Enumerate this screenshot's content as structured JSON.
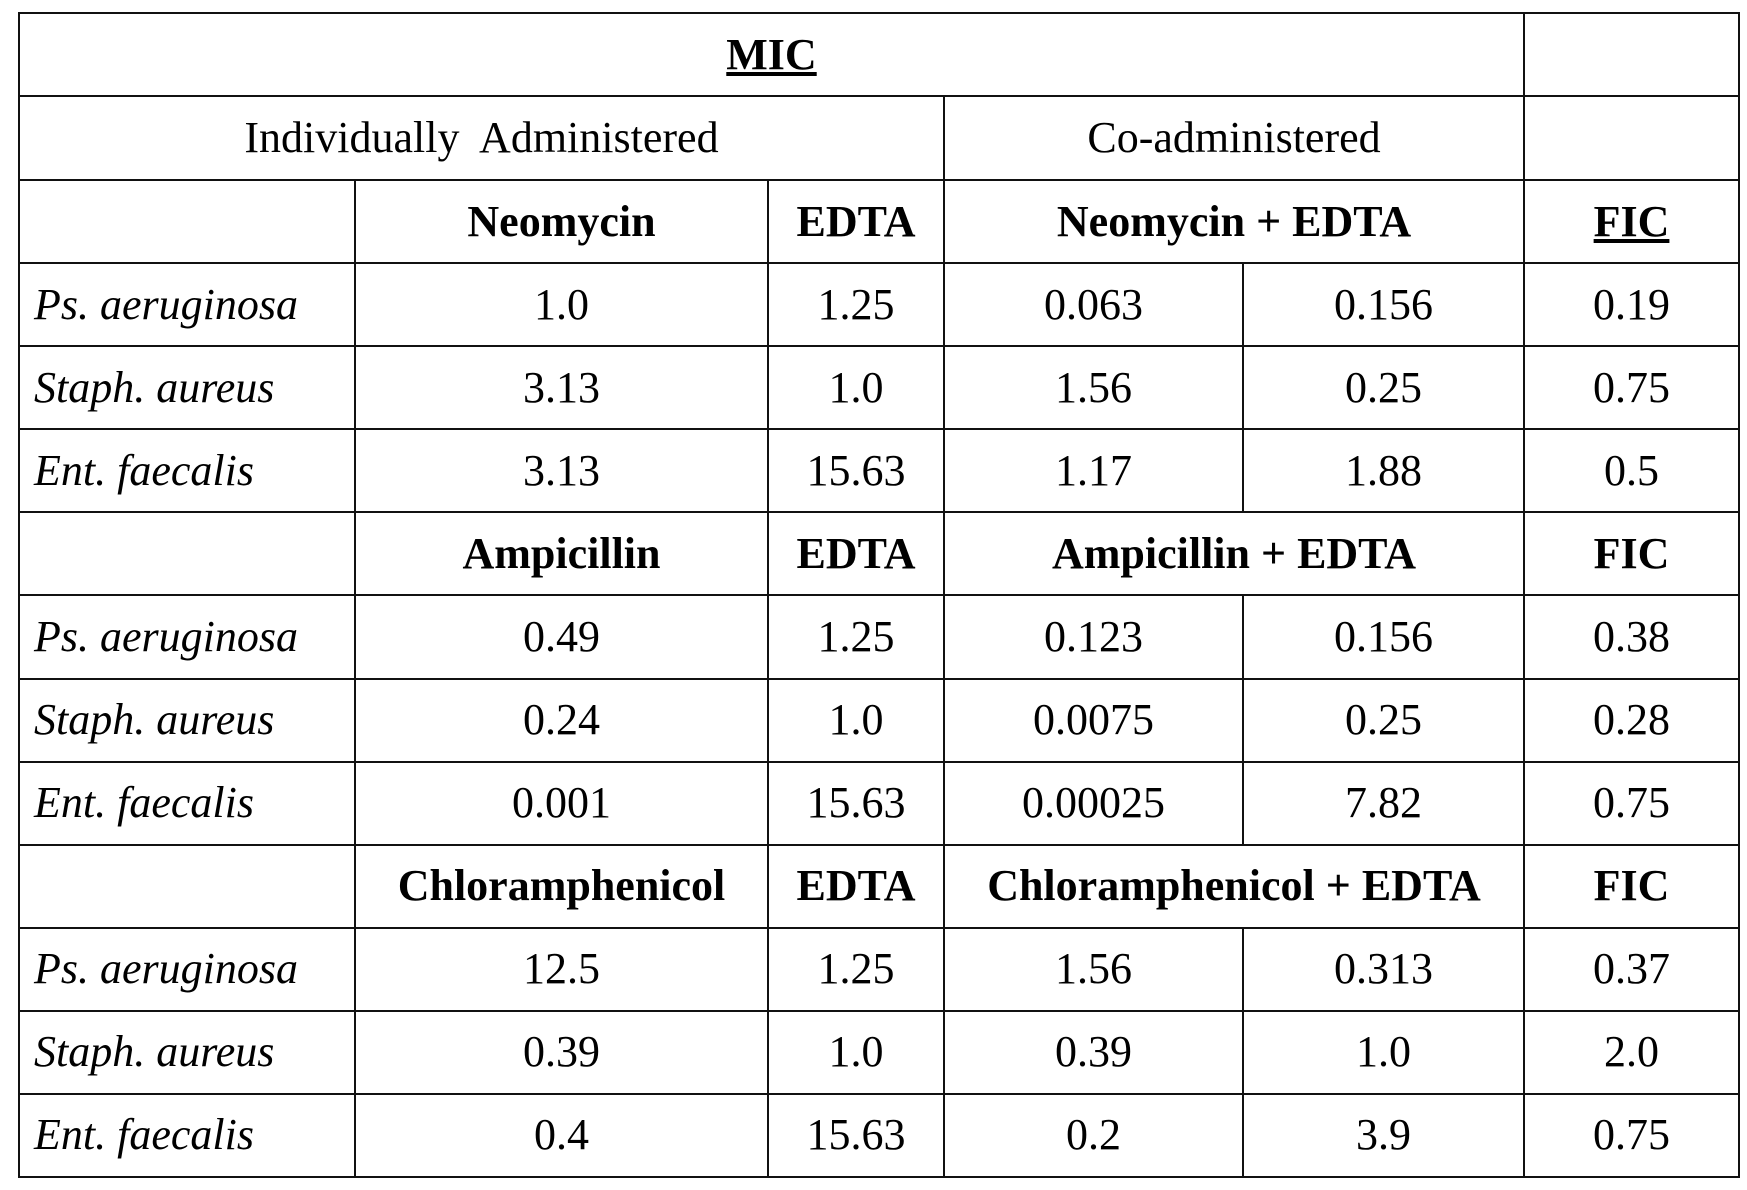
{
  "table": {
    "title": "MIC",
    "groups": {
      "individual": "Individually  Administered",
      "co": "Co-administered"
    },
    "sections": [
      {
        "header": {
          "drug": "Neomycin",
          "edta": "EDTA",
          "combo": "Neomycin + EDTA",
          "fic": "FIC",
          "fic_underlined": true
        },
        "rows": [
          {
            "organism": "Ps. aeruginosa",
            "drug": "1.0",
            "edta": "1.25",
            "co_drug": "0.063",
            "co_edta": "0.156",
            "fic": "0.19"
          },
          {
            "organism": "Staph. aureus",
            "drug": "3.13",
            "edta": "1.0",
            "co_drug": "1.56",
            "co_edta": "0.25",
            "fic": "0.75"
          },
          {
            "organism": "Ent. faecalis",
            "drug": "3.13",
            "edta": "15.63",
            "co_drug": "1.17",
            "co_edta": "1.88",
            "fic": "0.5"
          }
        ]
      },
      {
        "header": {
          "drug": "Ampicillin",
          "edta": "EDTA",
          "combo": "Ampicillin + EDTA",
          "fic": "FIC",
          "fic_underlined": false
        },
        "rows": [
          {
            "organism": "Ps. aeruginosa",
            "drug": "0.49",
            "edta": "1.25",
            "co_drug": "0.123",
            "co_edta": "0.156",
            "fic": "0.38"
          },
          {
            "organism": "Staph. aureus",
            "drug": "0.24",
            "edta": "1.0",
            "co_drug": "0.0075",
            "co_edta": "0.25",
            "fic": "0.28"
          },
          {
            "organism": "Ent. faecalis",
            "drug": "0.001",
            "edta": "15.63",
            "co_drug": "0.00025",
            "co_edta": "7.82",
            "fic": "0.75"
          }
        ]
      },
      {
        "header": {
          "drug": "Chloramphenicol",
          "edta": "EDTA",
          "combo": "Chloramphenicol + EDTA",
          "fic": "FIC",
          "fic_underlined": false
        },
        "rows": [
          {
            "organism": "Ps. aeruginosa",
            "drug": "12.5",
            "edta": "1.25",
            "co_drug": "1.56",
            "co_edta": "0.313",
            "fic": "0.37"
          },
          {
            "organism": "Staph. aureus",
            "drug": "0.39",
            "edta": "1.0",
            "co_drug": "0.39",
            "co_edta": "1.0",
            "fic": "2.0"
          },
          {
            "organism": "Ent. faecalis",
            "drug": "0.4",
            "edta": "15.63",
            "co_drug": "0.2",
            "co_edta": "3.9",
            "fic": "0.75"
          }
        ]
      }
    ]
  }
}
